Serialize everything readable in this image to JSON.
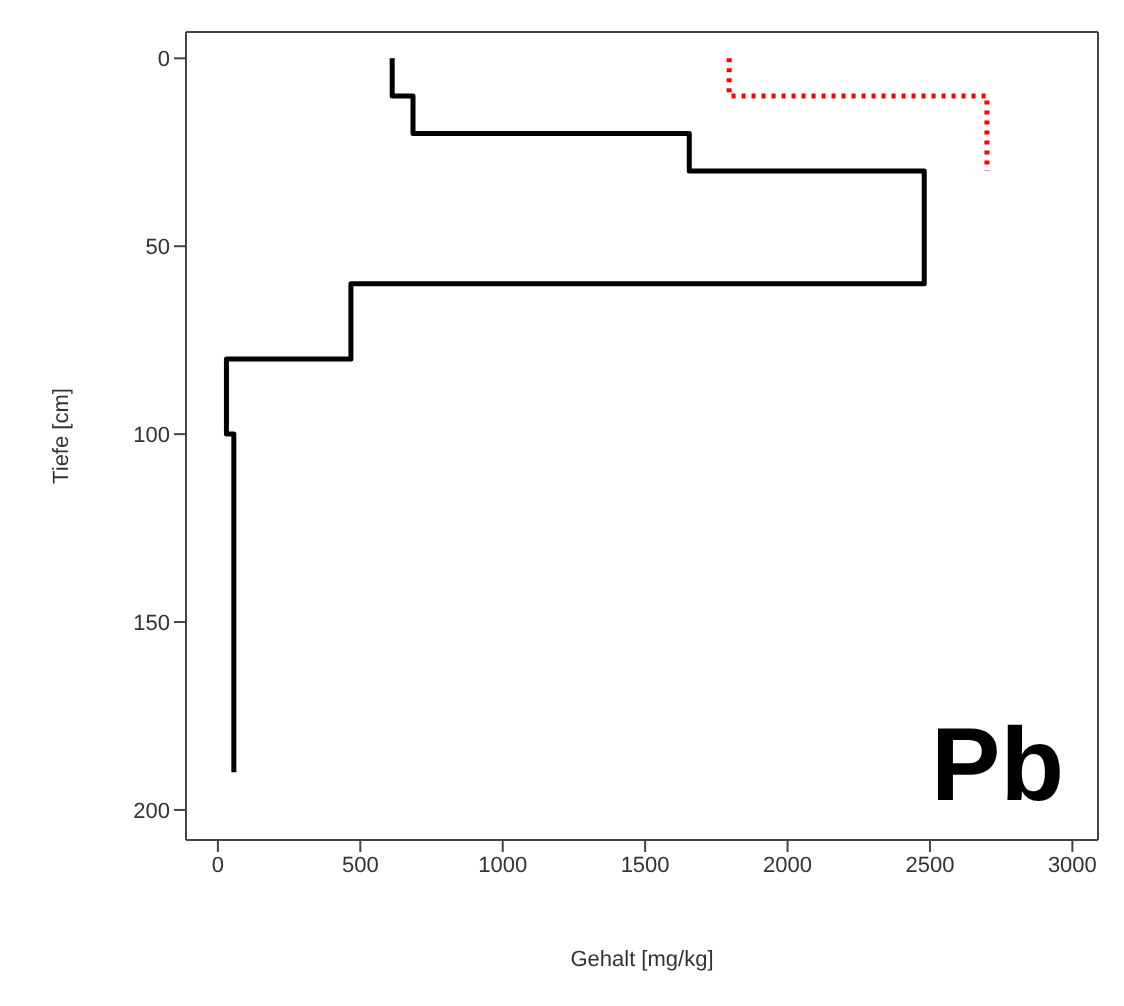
{
  "chart_data": {
    "type": "line",
    "xlabel": "Gehalt [mg/kg]",
    "ylabel": "Tiefe [cm]",
    "annotations": [
      "Pb"
    ],
    "xlim": [
      -112,
      3090
    ],
    "xticks": [
      0,
      500,
      1000,
      1500,
      2000,
      2500,
      3000
    ],
    "ylim": [
      208,
      -7
    ],
    "yticks": [
      0,
      50,
      100,
      150,
      200
    ],
    "series": [
      {
        "color": "#000000",
        "line_style": "solid",
        "x": [
          612,
          612,
          685,
          685,
          1655,
          1655,
          2480,
          2480,
          467,
          467,
          30,
          30,
          56,
          56
        ],
        "values": [
          0,
          10,
          10,
          20,
          20,
          30,
          30,
          60,
          60,
          80,
          80,
          100,
          100,
          190
        ]
      },
      {
        "color": "#ff0000",
        "line_style": "dotted",
        "x": [
          1795,
          1795,
          2700,
          2700
        ],
        "values": [
          0,
          10,
          10,
          30
        ]
      }
    ]
  }
}
